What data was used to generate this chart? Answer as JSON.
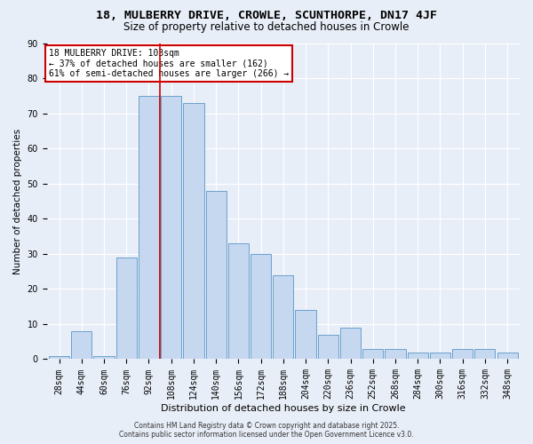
{
  "title1": "18, MULBERRY DRIVE, CROWLE, SCUNTHORPE, DN17 4JF",
  "title2": "Size of property relative to detached houses in Crowle",
  "xlabel": "Distribution of detached houses by size in Crowle",
  "ylabel": "Number of detached properties",
  "categories": [
    "28sqm",
    "44sqm",
    "60sqm",
    "76sqm",
    "92sqm",
    "108sqm",
    "124sqm",
    "140sqm",
    "156sqm",
    "172sqm",
    "188sqm",
    "204sqm",
    "220sqm",
    "236sqm",
    "252sqm",
    "268sqm",
    "284sqm",
    "300sqm",
    "316sqm",
    "332sqm",
    "348sqm"
  ],
  "values": [
    1,
    8,
    1,
    29,
    75,
    75,
    73,
    48,
    33,
    30,
    24,
    14,
    7,
    9,
    3,
    3,
    2,
    2,
    3,
    3,
    2
  ],
  "bar_color": "#c5d8f0",
  "bar_edge_color": "#6aa0cc",
  "vline_x": 4.5,
  "vline_color": "#cc0000",
  "annotation_text": "18 MULBERRY DRIVE: 103sqm\n← 37% of detached houses are smaller (162)\n61% of semi-detached houses are larger (266) →",
  "annotation_box_facecolor": "white",
  "annotation_box_edgecolor": "#cc0000",
  "ylim": [
    0,
    90
  ],
  "yticks": [
    0,
    10,
    20,
    30,
    40,
    50,
    60,
    70,
    80,
    90
  ],
  "background_color": "#e8eef8",
  "grid_color": "white",
  "footer1": "Contains HM Land Registry data © Crown copyright and database right 2025.",
  "footer2": "Contains public sector information licensed under the Open Government Licence v3.0.",
  "title_fontsize": 9.5,
  "subtitle_fontsize": 8.5,
  "xlabel_fontsize": 8,
  "ylabel_fontsize": 7.5,
  "tick_fontsize": 7,
  "ann_fontsize": 7,
  "footer_fontsize": 5.5
}
